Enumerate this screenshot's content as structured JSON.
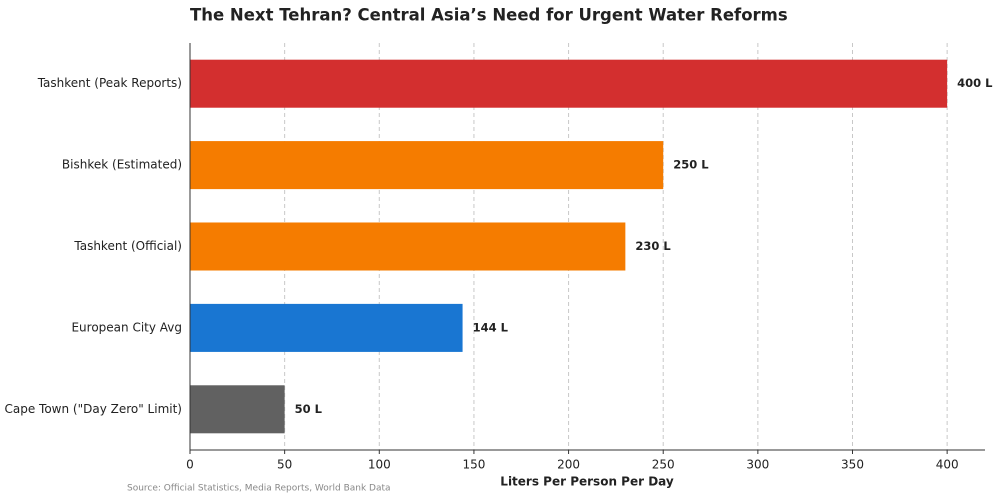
{
  "chart_data": {
    "type": "barh",
    "title": "The Next Tehran? Central Asia’s Need for Urgent Water Reforms",
    "categories": [
      "Tashkent (Peak Reports)",
      "Bishkek (Estimated)",
      "Tashkent (Official)",
      "European City Avg",
      "Cape Town (\"Day Zero\" Limit)"
    ],
    "values": [
      400,
      250,
      230,
      144,
      50
    ],
    "value_labels": [
      "400 L",
      "250 L",
      "230 L",
      "144 L",
      "50 L"
    ],
    "colors": [
      "#d32f2f",
      "#f57c00",
      "#f57c00",
      "#1976d2",
      "#616161"
    ],
    "xlabel": "Liters Per Person Per Day",
    "xlim": [
      0,
      420
    ],
    "xticks": [
      0,
      50,
      100,
      150,
      200,
      250,
      300,
      350,
      400
    ],
    "grid": true,
    "source": "Source: Official Statistics, Media Reports, World Bank Data"
  }
}
